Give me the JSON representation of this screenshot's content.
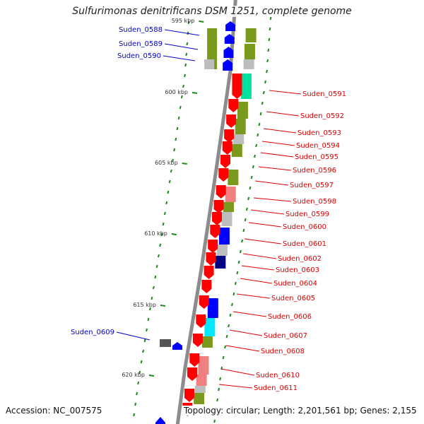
{
  "title": "Sulfurimonas denitrificans DSM 1251, complete genome",
  "accession": "Accession: NC_007575",
  "summary": "Topology: circular; Length: 2,201,561 bp; Genes: 2,155",
  "colors": {
    "forward": "#ff0000",
    "reverse": "#0000ff",
    "backbone": "#8c8c8c",
    "cog_olive": "#7a9a1e",
    "cog_gray": "#bdbdbd",
    "cog_teal": "#00e0a0",
    "cog_cyan": "#00e8ff",
    "cog_pink": "#f08080",
    "cog_navy": "#000080",
    "gc_tick": "#1a8a1a",
    "label_forward": "#dd0000",
    "label_reverse": "#0000cc"
  },
  "scale_labels": [
    "595 kbp",
    "600 kbp",
    "605 kbp",
    "610 kbp",
    "615 kbp",
    "620 kbp"
  ],
  "reverse_genes": [
    "Suden_0588",
    "Suden_0589",
    "Suden_0590",
    "Suden_0609"
  ],
  "forward_genes": [
    "Suden_0591",
    "Suden_0592",
    "Suden_0593",
    "Suden_0594",
    "Suden_0595",
    "Suden_0596",
    "Suden_0597",
    "Suden_0598",
    "Suden_0599",
    "Suden_0600",
    "Suden_0601",
    "Suden_0602",
    "Suden_0603",
    "Suden_0604",
    "Suden_0605",
    "Suden_0606",
    "Suden_0607",
    "Suden_0608",
    "Suden_0610",
    "Suden_0611"
  ]
}
